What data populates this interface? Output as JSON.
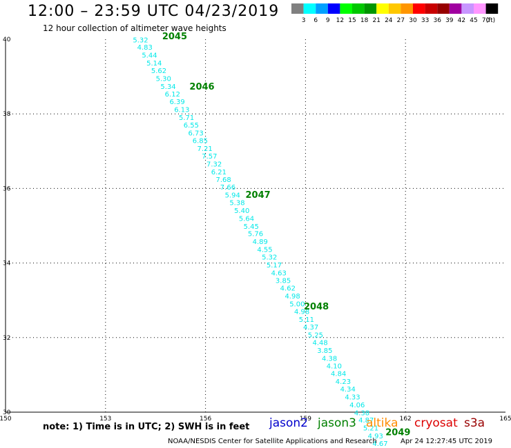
{
  "header": {
    "title": "12:00 – 23:59 UTC 04/23/2019",
    "subtitle": "12 hour collection of altimeter wave heights"
  },
  "legend": {
    "units": "(ft)",
    "bins": [
      {
        "label": "3",
        "color": "#808080"
      },
      {
        "label": "6",
        "color": "#00ffff"
      },
      {
        "label": "9",
        "color": "#00a0ff"
      },
      {
        "label": "12",
        "color": "#0000ff"
      },
      {
        "label": "15",
        "color": "#00ff00"
      },
      {
        "label": "18",
        "color": "#00c800"
      },
      {
        "label": "21",
        "color": "#009600"
      },
      {
        "label": "24",
        "color": "#ffff00"
      },
      {
        "label": "27",
        "color": "#ffc800"
      },
      {
        "label": "30",
        "color": "#ff9600"
      },
      {
        "label": "33",
        "color": "#ff0000"
      },
      {
        "label": "36",
        "color": "#c80000"
      },
      {
        "label": "39",
        "color": "#960000"
      },
      {
        "label": "42",
        "color": "#a000a0"
      },
      {
        "label": "45",
        "color": "#c896ff"
      },
      {
        "label": "70",
        "color": "#ff96ff"
      },
      {
        "label": "",
        "color": "#000000"
      }
    ]
  },
  "chart_data": {
    "type": "scatter",
    "x_ticks": [
      "150",
      "153",
      "156",
      "159",
      "162",
      "165"
    ],
    "y_ticks": [
      "30",
      "32",
      "34",
      "36",
      "38",
      "40"
    ],
    "xlim": [
      150,
      165
    ],
    "ylim": [
      30,
      40
    ],
    "grid": true,
    "point_color": "#00e8e8",
    "time_label_color": "#008000",
    "points": [
      {
        "lon": 154.05,
        "lat": 39.92,
        "v": "5.32"
      },
      {
        "lon": 154.18,
        "lat": 39.72,
        "v": "4.83"
      },
      {
        "lon": 154.32,
        "lat": 39.51,
        "v": "5.44"
      },
      {
        "lon": 154.46,
        "lat": 39.3,
        "v": "5.14"
      },
      {
        "lon": 154.6,
        "lat": 39.09,
        "v": "5.62"
      },
      {
        "lon": 154.74,
        "lat": 38.88,
        "v": "5.30"
      },
      {
        "lon": 154.88,
        "lat": 38.67,
        "v": "5.34"
      },
      {
        "lon": 155.01,
        "lat": 38.47,
        "v": "6.12"
      },
      {
        "lon": 155.15,
        "lat": 38.26,
        "v": "6.39"
      },
      {
        "lon": 155.29,
        "lat": 38.05,
        "v": "6.13"
      },
      {
        "lon": 155.43,
        "lat": 37.84,
        "v": "5.71"
      },
      {
        "lon": 155.57,
        "lat": 37.63,
        "v": "6.55"
      },
      {
        "lon": 155.71,
        "lat": 37.42,
        "v": "6.73"
      },
      {
        "lon": 155.84,
        "lat": 37.22,
        "v": "6.85"
      },
      {
        "lon": 155.98,
        "lat": 37.01,
        "v": "7.21"
      },
      {
        "lon": 156.12,
        "lat": 36.8,
        "v": "7.57"
      },
      {
        "lon": 156.26,
        "lat": 36.59,
        "v": "7.32"
      },
      {
        "lon": 156.4,
        "lat": 36.38,
        "v": "6.21"
      },
      {
        "lon": 156.54,
        "lat": 36.17,
        "v": "7.68"
      },
      {
        "lon": 156.67,
        "lat": 35.97,
        "v": "7.66"
      },
      {
        "lon": 156.81,
        "lat": 35.76,
        "v": "5.94"
      },
      {
        "lon": 156.95,
        "lat": 35.55,
        "v": "5.38"
      },
      {
        "lon": 157.09,
        "lat": 35.34,
        "v": "5.40"
      },
      {
        "lon": 157.23,
        "lat": 35.13,
        "v": "5.64"
      },
      {
        "lon": 157.37,
        "lat": 34.92,
        "v": "5.45"
      },
      {
        "lon": 157.5,
        "lat": 34.72,
        "v": "5.76"
      },
      {
        "lon": 157.64,
        "lat": 34.51,
        "v": "4.89"
      },
      {
        "lon": 157.78,
        "lat": 34.3,
        "v": "4.55"
      },
      {
        "lon": 157.92,
        "lat": 34.09,
        "v": "5.32"
      },
      {
        "lon": 158.06,
        "lat": 33.88,
        "v": "5.17"
      },
      {
        "lon": 158.2,
        "lat": 33.67,
        "v": "4.63"
      },
      {
        "lon": 158.33,
        "lat": 33.47,
        "v": "3.85"
      },
      {
        "lon": 158.47,
        "lat": 33.26,
        "v": "4.62"
      },
      {
        "lon": 158.61,
        "lat": 33.05,
        "v": "4.98"
      },
      {
        "lon": 158.75,
        "lat": 32.84,
        "v": "5.00"
      },
      {
        "lon": 158.89,
        "lat": 32.63,
        "v": "4.98"
      },
      {
        "lon": 159.03,
        "lat": 32.42,
        "v": "5.11"
      },
      {
        "lon": 159.16,
        "lat": 32.22,
        "v": "4.37"
      },
      {
        "lon": 159.3,
        "lat": 32.01,
        "v": "5.25"
      },
      {
        "lon": 159.44,
        "lat": 31.8,
        "v": "4.48"
      },
      {
        "lon": 159.58,
        "lat": 31.59,
        "v": "3.85"
      },
      {
        "lon": 159.72,
        "lat": 31.38,
        "v": "4.38"
      },
      {
        "lon": 159.86,
        "lat": 31.17,
        "v": "4.10"
      },
      {
        "lon": 159.99,
        "lat": 30.97,
        "v": "4.84"
      },
      {
        "lon": 160.13,
        "lat": 30.76,
        "v": "4.23"
      },
      {
        "lon": 160.27,
        "lat": 30.55,
        "v": "4.34"
      },
      {
        "lon": 160.41,
        "lat": 30.34,
        "v": "4.33"
      },
      {
        "lon": 160.55,
        "lat": 30.13,
        "v": "4.06"
      },
      {
        "lon": 160.69,
        "lat": 29.92,
        "v": "4.38"
      },
      {
        "lon": 160.82,
        "lat": 29.72,
        "v": "4.87"
      },
      {
        "lon": 160.96,
        "lat": 29.51,
        "v": "5.21"
      },
      {
        "lon": 161.1,
        "lat": 29.3,
        "v": "4.93"
      },
      {
        "lon": 161.24,
        "lat": 29.09,
        "v": "4.67"
      }
    ],
    "time_labels": [
      {
        "lon": 154.7,
        "lat": 40.0,
        "text": "2045"
      },
      {
        "lon": 155.52,
        "lat": 38.65,
        "text": "2046"
      },
      {
        "lon": 157.2,
        "lat": 35.75,
        "text": "2047"
      },
      {
        "lon": 158.95,
        "lat": 32.75,
        "text": "2048"
      },
      {
        "lon": 161.4,
        "lat": 29.38,
        "text": "2049"
      }
    ]
  },
  "footer": {
    "note": "note:  1) Time is in UTC;  2) SWH is in feet",
    "satellites": [
      {
        "name": "jason2",
        "color": "#0000cc"
      },
      {
        "name": "jason3",
        "color": "#008000"
      },
      {
        "name": "altika",
        "color": "#ff8c00"
      },
      {
        "name": "cryosat",
        "color": "#dd0000"
      },
      {
        "name": "s3a",
        "color": "#990000"
      }
    ],
    "credit": "NOAA/NESDIS Center for Satellite Applications and Research",
    "timestamp": "Apr 24 12:27:45 UTC 2019"
  }
}
